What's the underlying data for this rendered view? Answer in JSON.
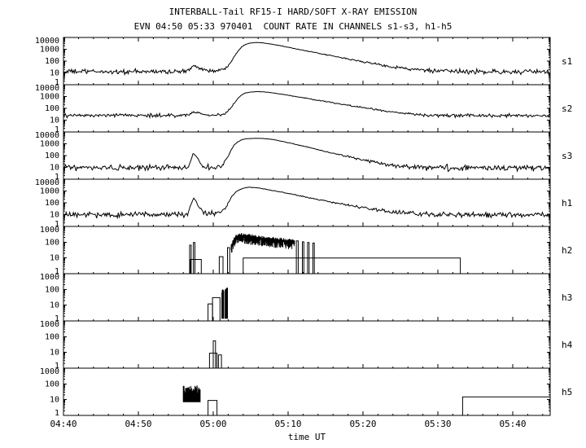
{
  "title1": "INTERBALL-Tail RF15-I HARD/SOFT X-RAY EMISSION",
  "title2": "EVN 04:50 05:33 970401  COUNT RATE IN CHANNELS s1-s3, h1-h5",
  "xlabel": "time UT",
  "colors": {
    "stroke": "#000000",
    "background": "#ffffff"
  },
  "chart_data": {
    "type": "line",
    "title": "INTERBALL-Tail RF15-I HARD/SOFT X-RAY EMISSION",
    "subtitle": "EVN 04:50 05:33 970401  COUNT RATE IN CHANNELS s1-s3, h1-h5",
    "x_axis": {
      "label": "time UT",
      "min_minutes": 0,
      "max_minutes": 65,
      "start_time": "04:40",
      "tick_minutes": [
        0,
        10,
        20,
        30,
        40,
        50,
        60
      ],
      "tick_labels": [
        "04:40",
        "04:50",
        "05:00",
        "05:10",
        "05:20",
        "05:30",
        "05:40"
      ],
      "minor_step": 2
    },
    "panels": [
      {
        "name": "s1",
        "type": "line",
        "ylim": [
          1,
          10000
        ],
        "yticks": [
          1,
          10,
          100,
          1000,
          10000
        ],
        "keypoints": [
          [
            0,
            13
          ],
          [
            4,
            13
          ],
          [
            8,
            12
          ],
          [
            12,
            13
          ],
          [
            16,
            13
          ],
          [
            16.8,
            16
          ],
          [
            17.2,
            35
          ],
          [
            17.6,
            40
          ],
          [
            18,
            32
          ],
          [
            18.6,
            20
          ],
          [
            19.5,
            15
          ],
          [
            20.5,
            15
          ],
          [
            21.3,
            18
          ],
          [
            21.8,
            30
          ],
          [
            22.3,
            80
          ],
          [
            22.8,
            250
          ],
          [
            23.3,
            700
          ],
          [
            23.8,
            1600
          ],
          [
            24.3,
            2600
          ],
          [
            25,
            3400
          ],
          [
            25.6,
            3800
          ],
          [
            26.2,
            3700
          ],
          [
            27,
            3200
          ],
          [
            28,
            2600
          ],
          [
            29,
            2000
          ],
          [
            30,
            1500
          ],
          [
            31,
            1100
          ],
          [
            32,
            820
          ],
          [
            33,
            620
          ],
          [
            34,
            470
          ],
          [
            35,
            350
          ],
          [
            36,
            265
          ],
          [
            37,
            200
          ],
          [
            38,
            150
          ],
          [
            39,
            115
          ],
          [
            40,
            88
          ],
          [
            41,
            68
          ],
          [
            42,
            52
          ],
          [
            43,
            41
          ],
          [
            44,
            33
          ],
          [
            45,
            27
          ],
          [
            46,
            22
          ],
          [
            47,
            19
          ],
          [
            48,
            17
          ],
          [
            49,
            15
          ],
          [
            50,
            14
          ],
          [
            52,
            13
          ],
          [
            56,
            13
          ],
          [
            60,
            12
          ],
          [
            65,
            12
          ]
        ]
      },
      {
        "name": "s2",
        "type": "line",
        "ylim": [
          1,
          10000
        ],
        "yticks": [
          1,
          10,
          100,
          1000,
          10000
        ],
        "keypoints": [
          [
            0,
            25
          ],
          [
            5,
            24
          ],
          [
            10,
            25
          ],
          [
            15,
            25
          ],
          [
            16.8,
            28
          ],
          [
            17.2,
            45
          ],
          [
            17.6,
            50
          ],
          [
            18,
            40
          ],
          [
            18.6,
            30
          ],
          [
            19.5,
            26
          ],
          [
            20.5,
            26
          ],
          [
            21.3,
            30
          ],
          [
            21.8,
            45
          ],
          [
            22.3,
            100
          ],
          [
            22.8,
            280
          ],
          [
            23.3,
            700
          ],
          [
            23.8,
            1400
          ],
          [
            24.3,
            2000
          ],
          [
            25,
            2400
          ],
          [
            25.8,
            2600
          ],
          [
            26.5,
            2500
          ],
          [
            27.5,
            2200
          ],
          [
            28.5,
            1800
          ],
          [
            29.5,
            1450
          ],
          [
            30.5,
            1150
          ],
          [
            31.5,
            900
          ],
          [
            32.5,
            700
          ],
          [
            33.5,
            540
          ],
          [
            34.5,
            420
          ],
          [
            35.5,
            330
          ],
          [
            36.5,
            260
          ],
          [
            37.5,
            205
          ],
          [
            38.5,
            160
          ],
          [
            39.5,
            128
          ],
          [
            40.5,
            102
          ],
          [
            41.5,
            82
          ],
          [
            42.5,
            66
          ],
          [
            43.5,
            54
          ],
          [
            44.5,
            45
          ],
          [
            45.5,
            38
          ],
          [
            46.5,
            33
          ],
          [
            47.5,
            29
          ],
          [
            48.5,
            27
          ],
          [
            50,
            26
          ],
          [
            52,
            25
          ],
          [
            56,
            25
          ],
          [
            60,
            24
          ],
          [
            65,
            25
          ]
        ]
      },
      {
        "name": "s3",
        "type": "line",
        "ylim": [
          1,
          10000
        ],
        "yticks": [
          1,
          10,
          100,
          1000,
          10000
        ],
        "keypoints": [
          [
            0,
            9
          ],
          [
            5,
            9
          ],
          [
            10,
            9
          ],
          [
            15,
            9
          ],
          [
            16.6,
            10
          ],
          [
            17,
            40
          ],
          [
            17.3,
            140
          ],
          [
            17.6,
            120
          ],
          [
            18,
            45
          ],
          [
            18.5,
            15
          ],
          [
            19.3,
            10
          ],
          [
            20.3,
            10
          ],
          [
            21,
            12
          ],
          [
            21.5,
            25
          ],
          [
            22,
            90
          ],
          [
            22.4,
            300
          ],
          [
            22.8,
            800
          ],
          [
            23.3,
            1500
          ],
          [
            23.8,
            2200
          ],
          [
            24.5,
            2700
          ],
          [
            25.5,
            2900
          ],
          [
            26.5,
            2800
          ],
          [
            27.5,
            2500
          ],
          [
            28.3,
            2100
          ],
          [
            29,
            1700
          ],
          [
            30,
            1250
          ],
          [
            31,
            900
          ],
          [
            32,
            640
          ],
          [
            33,
            450
          ],
          [
            34,
            320
          ],
          [
            35,
            225
          ],
          [
            36,
            160
          ],
          [
            37,
            115
          ],
          [
            38,
            82
          ],
          [
            39,
            60
          ],
          [
            40,
            44
          ],
          [
            41,
            33
          ],
          [
            42,
            25
          ],
          [
            43,
            19
          ],
          [
            44,
            15
          ],
          [
            45,
            13
          ],
          [
            46,
            11
          ],
          [
            47,
            10
          ],
          [
            49,
            10
          ],
          [
            52,
            9
          ],
          [
            56,
            9
          ],
          [
            60,
            9
          ],
          [
            65,
            9
          ]
        ]
      },
      {
        "name": "h1",
        "type": "line",
        "ylim": [
          1,
          10000
        ],
        "yticks": [
          1,
          10,
          100,
          1000,
          10000
        ],
        "keypoints": [
          [
            0,
            10
          ],
          [
            5,
            10
          ],
          [
            10,
            10
          ],
          [
            15,
            10
          ],
          [
            16.6,
            11
          ],
          [
            17,
            60
          ],
          [
            17.35,
            250
          ],
          [
            17.7,
            150
          ],
          [
            18,
            60
          ],
          [
            18.4,
            25
          ],
          [
            19,
            13
          ],
          [
            20,
            12
          ],
          [
            21,
            14
          ],
          [
            21.6,
            35
          ],
          [
            22.1,
            120
          ],
          [
            22.5,
            350
          ],
          [
            23,
            800
          ],
          [
            23.5,
            1300
          ],
          [
            24.2,
            1800
          ],
          [
            24.8,
            2100
          ],
          [
            25.4,
            2000
          ],
          [
            26,
            1800
          ],
          [
            26.8,
            1500
          ],
          [
            27.6,
            1200
          ],
          [
            28.5,
            950
          ],
          [
            29.5,
            720
          ],
          [
            30.5,
            540
          ],
          [
            31.5,
            400
          ],
          [
            32.5,
            300
          ],
          [
            33.5,
            220
          ],
          [
            34.5,
            165
          ],
          [
            35.5,
            125
          ],
          [
            36.5,
            95
          ],
          [
            37.5,
            72
          ],
          [
            38.5,
            56
          ],
          [
            39.5,
            44
          ],
          [
            40.5,
            35
          ],
          [
            41.5,
            28
          ],
          [
            42.5,
            23
          ],
          [
            43.5,
            19
          ],
          [
            44.5,
            16
          ],
          [
            45.5,
            14
          ],
          [
            47,
            12
          ],
          [
            49,
            11
          ],
          [
            52,
            10
          ],
          [
            56,
            10
          ],
          [
            60,
            10
          ],
          [
            65,
            10
          ]
        ]
      },
      {
        "name": "h2",
        "type": "hist",
        "ylim": [
          1,
          1000
        ],
        "yticks": [
          1,
          10,
          100,
          1000
        ],
        "boxes": [
          [
            16.85,
            17.05,
            65
          ],
          [
            17.35,
            17.55,
            95
          ],
          [
            16.95,
            18.4,
            8
          ],
          [
            20.8,
            21.3,
            12
          ],
          [
            21.9,
            22.2,
            45
          ],
          [
            31.1,
            31.35,
            120
          ],
          [
            31.9,
            32.1,
            105
          ],
          [
            32.6,
            32.8,
            95
          ],
          [
            33.3,
            33.5,
            88
          ],
          [
            24,
            53,
            10
          ]
        ],
        "noisy": [
          {
            "t0": 22.4,
            "t1": 30.9,
            "keypoints": [
              [
                22.4,
                60
              ],
              [
                22.7,
                150
              ],
              [
                23,
                260
              ],
              [
                23.5,
                310
              ],
              [
                24.2,
                300
              ],
              [
                25,
                270
              ],
              [
                26,
                235
              ],
              [
                27,
                205
              ],
              [
                28,
                180
              ],
              [
                29,
                160
              ],
              [
                30,
                140
              ],
              [
                30.9,
                125
              ]
            ],
            "depth": 0.45,
            "jitter": 0.18
          }
        ]
      },
      {
        "name": "h3",
        "type": "hist",
        "ylim": [
          1,
          1000
        ],
        "yticks": [
          1,
          10,
          100,
          1000
        ],
        "boxes": [
          [
            19.3,
            19.9,
            12
          ],
          [
            19.9,
            20.9,
            30
          ]
        ],
        "noisy": [
          {
            "t0": 21.15,
            "t1": 21.45,
            "top": 85,
            "base": 1.4,
            "jitter": 0.3
          },
          {
            "t0": 21.6,
            "t1": 21.95,
            "top": 115,
            "base": 1.4,
            "jitter": 0.3
          }
        ]
      },
      {
        "name": "h4",
        "type": "hist",
        "ylim": [
          1,
          1000
        ],
        "yticks": [
          1,
          10,
          100,
          1000
        ],
        "boxes": [
          [
            19.5,
            20.5,
            9
          ],
          [
            20,
            20.3,
            55
          ],
          [
            20.7,
            21.1,
            7
          ]
        ]
      },
      {
        "name": "h5",
        "type": "hist",
        "ylim": [
          1,
          1000
        ],
        "yticks": [
          1,
          10,
          100,
          1000
        ],
        "boxes": [
          [
            19.3,
            20.5,
            9
          ]
        ],
        "noisy": [
          {
            "t0": 16,
            "t1": 18.3,
            "top": 45,
            "base": 7,
            "jitter": 0.5
          }
        ],
        "steps": [
          {
            "t0": 53.3,
            "level": 15
          }
        ]
      }
    ]
  }
}
